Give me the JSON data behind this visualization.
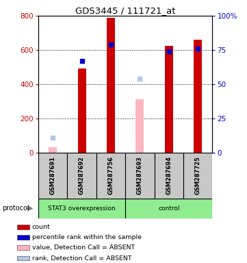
{
  "title": "GDS3445 / 111721_at",
  "samples": [
    "GSM287691",
    "GSM287692",
    "GSM287756",
    "GSM287693",
    "GSM287694",
    "GSM287725"
  ],
  "count_values": [
    null,
    490,
    790,
    null,
    625,
    660
  ],
  "count_color": "#cc0000",
  "rank_values_pct": [
    null,
    67,
    79,
    null,
    74,
    76
  ],
  "rank_color": "#0000cc",
  "absent_count_values": [
    30,
    null,
    null,
    310,
    null,
    null
  ],
  "absent_count_color": "#ffb6c1",
  "absent_rank_values_pct": [
    11,
    null,
    null,
    54,
    null,
    null
  ],
  "absent_rank_color": "#b0c8e8",
  "ylim_left": [
    0,
    800
  ],
  "ylim_right": [
    0,
    100
  ],
  "yticks_left": [
    0,
    200,
    400,
    600,
    800
  ],
  "yticks_right": [
    0,
    25,
    50,
    75,
    100
  ],
  "ytick_labels_right": [
    "0",
    "25",
    "50",
    "75",
    "100%"
  ],
  "group_label_text": [
    "STAT3 overexpression",
    "control"
  ],
  "protocol_label": "protocol",
  "legend_items": [
    {
      "label": "count",
      "color": "#cc0000"
    },
    {
      "label": "percentile rank within the sample",
      "color": "#0000cc"
    },
    {
      "label": "value, Detection Call = ABSENT",
      "color": "#ffb6c1"
    },
    {
      "label": "rank, Detection Call = ABSENT",
      "color": "#b0c8e8"
    }
  ],
  "background_color": "#ffffff",
  "tick_color_left": "#cc0000",
  "tick_color_right": "#0000cc",
  "green_color": "#90EE90",
  "gray_color": "#c8c8c8"
}
